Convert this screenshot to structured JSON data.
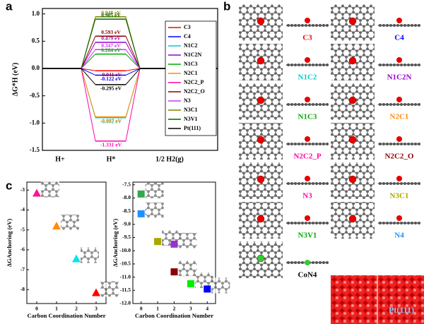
{
  "chart_data": [
    {
      "type": "line",
      "panel_label": "a",
      "ylabel": "ΔG*H (eV)",
      "categories": [
        "H+",
        "H*",
        "1/2 H2(g)"
      ],
      "ylim": [
        -1.5,
        1.1
      ],
      "yticks": [
        {
          "value": -1.5,
          "label": "-1.5"
        },
        {
          "value": -1,
          "label": "-1.0"
        },
        {
          "value": -0.5,
          "label": "-0.5"
        },
        {
          "value": 0,
          "label": "0.0"
        },
        {
          "value": 0.5,
          "label": "0.5"
        },
        {
          "value": 1,
          "label": "1.0"
        }
      ],
      "legend": "upper right",
      "series": [
        {
          "name": "C3",
          "color": "#ff0000",
          "values": [
            0,
            -0.041,
            0
          ],
          "value_labels": [
            null,
            "-0.041 eV",
            null
          ]
        },
        {
          "name": "C4",
          "color": "#0000ff",
          "values": [
            0,
            -0.122,
            0
          ],
          "value_labels": [
            null,
            "-0.122 eV",
            null
          ]
        },
        {
          "name": "N1C2",
          "color": "#00cccc",
          "values": [
            0,
            -0.902,
            0
          ],
          "value_labels": [
            null,
            "-0.902 eV",
            null
          ]
        },
        {
          "name": "N1C2N",
          "color": "#9900cc",
          "values": [
            0,
            0.479,
            0
          ],
          "value_labels": [
            null,
            "0.479 eV",
            null
          ]
        },
        {
          "name": "N1C3",
          "color": "#00aa00",
          "values": [
            0,
            0.264,
            0
          ],
          "value_labels": [
            null,
            "0.264 eV",
            null
          ]
        },
        {
          "name": "N2C1",
          "color": "#ff8c00",
          "values": [
            0,
            -0.887,
            0
          ],
          "value_labels": [
            null,
            "-0.887 eV",
            null
          ]
        },
        {
          "name": "N2C2_P",
          "color": "#ff00aa",
          "values": [
            0,
            -1.331,
            0
          ],
          "value_labels": [
            null,
            "-1.331 eV",
            null
          ]
        },
        {
          "name": "N2C2_O",
          "color": "#8b0000",
          "values": [
            0,
            0.593,
            0
          ],
          "value_labels": [
            null,
            "0.593 eV",
            null
          ]
        },
        {
          "name": "N3",
          "color": "#cc33ff",
          "values": [
            0,
            0.347,
            0
          ],
          "value_labels": [
            null,
            "0.347 eV",
            null
          ]
        },
        {
          "name": "N3C1",
          "color": "#808000",
          "values": [
            0,
            0.948,
            0
          ],
          "value_labels": [
            null,
            "0.948 eV",
            null
          ]
        },
        {
          "name": "N3V1",
          "color": "#006400",
          "values": [
            0,
            0.905,
            0
          ],
          "value_labels": [
            null,
            "0.905 eV",
            null
          ]
        },
        {
          "name": "Pt(111)",
          "color": "#000000",
          "values": [
            0,
            -0.295,
            0
          ],
          "value_labels": [
            null,
            "-0.295 eV",
            null
          ]
        }
      ]
    },
    {
      "type": "scatter",
      "panel_label": "c",
      "marker": "triangle",
      "xlabel": "Carbon Coordination Number",
      "ylabel": "ΔGAnchoring (eV)",
      "xlim": [
        -0.5,
        3.5
      ],
      "xticks": [
        0,
        1,
        2,
        3
      ],
      "ylim": [
        -8.7,
        -2.6
      ],
      "yticks": [
        -3,
        -4,
        -5,
        -6,
        -7,
        -8
      ],
      "x": [
        0,
        1,
        2,
        3
      ],
      "values": [
        -3.15,
        -4.8,
        -6.45,
        -8.15
      ],
      "colors": [
        "#ff1493",
        "#ff8c00",
        "#00e5ee",
        "#ff0000"
      ]
    },
    {
      "type": "scatter",
      "marker": "square",
      "xlabel": "Carbon Coordination Number",
      "ylabel": "ΔGAnchoring (eV)",
      "xlim": [
        -0.5,
        4.5
      ],
      "xticks": [
        0,
        1,
        2,
        3,
        4
      ],
      "ylim": [
        -12,
        -7.4
      ],
      "yticks": [
        {
          "value": -7.5,
          "label": "-7.5"
        },
        {
          "value": -8,
          "label": "-8.0"
        },
        {
          "value": -8.5,
          "label": "-8.5"
        },
        {
          "value": -9,
          "label": "-9.0"
        },
        {
          "value": -9.5,
          "label": "-9.5"
        },
        {
          "value": -10,
          "label": "-10.0"
        },
        {
          "value": -10.5,
          "label": "-10.5"
        },
        {
          "value": -11,
          "label": "-11.0"
        },
        {
          "value": -11.5,
          "label": "-11.5"
        },
        {
          "value": -12,
          "label": "-12.0"
        }
      ],
      "x": [
        0,
        0,
        1,
        2,
        2,
        3,
        4
      ],
      "values": [
        -7.85,
        -8.6,
        -9.65,
        -9.75,
        -10.8,
        -11.25,
        -11.45
      ],
      "colors": [
        "#32a852",
        "#1e90ff",
        "#a8a800",
        "#9932cc",
        "#8b0000",
        "#00ee00",
        "#0000ff"
      ]
    }
  ],
  "structures": {
    "panel_label": "b",
    "items": [
      {
        "label": "C3",
        "color": "#ff0000"
      },
      {
        "label": "C4",
        "color": "#0000ff"
      },
      {
        "label": "N1C2",
        "color": "#00cccc"
      },
      {
        "label": "N1C2N",
        "color": "#9900cc"
      },
      {
        "label": "N1C3",
        "color": "#00aa00"
      },
      {
        "label": "N2C1",
        "color": "#ff8c00"
      },
      {
        "label": "N2C2_P",
        "color": "#ff00aa"
      },
      {
        "label": "N2C2_O",
        "color": "#8b0000"
      },
      {
        "label": "N3",
        "color": "#ff00aa"
      },
      {
        "label": "N3C1",
        "color": "#a8a800"
      },
      {
        "label": "N3V1",
        "color": "#00aa00"
      },
      {
        "label": "N4",
        "color": "#1e90ff"
      },
      {
        "label": "CoN4",
        "color": "#000000",
        "atom_color": "#33cc33"
      },
      {
        "label": "Pt(111)",
        "color": "#7ec8ff"
      }
    ]
  }
}
